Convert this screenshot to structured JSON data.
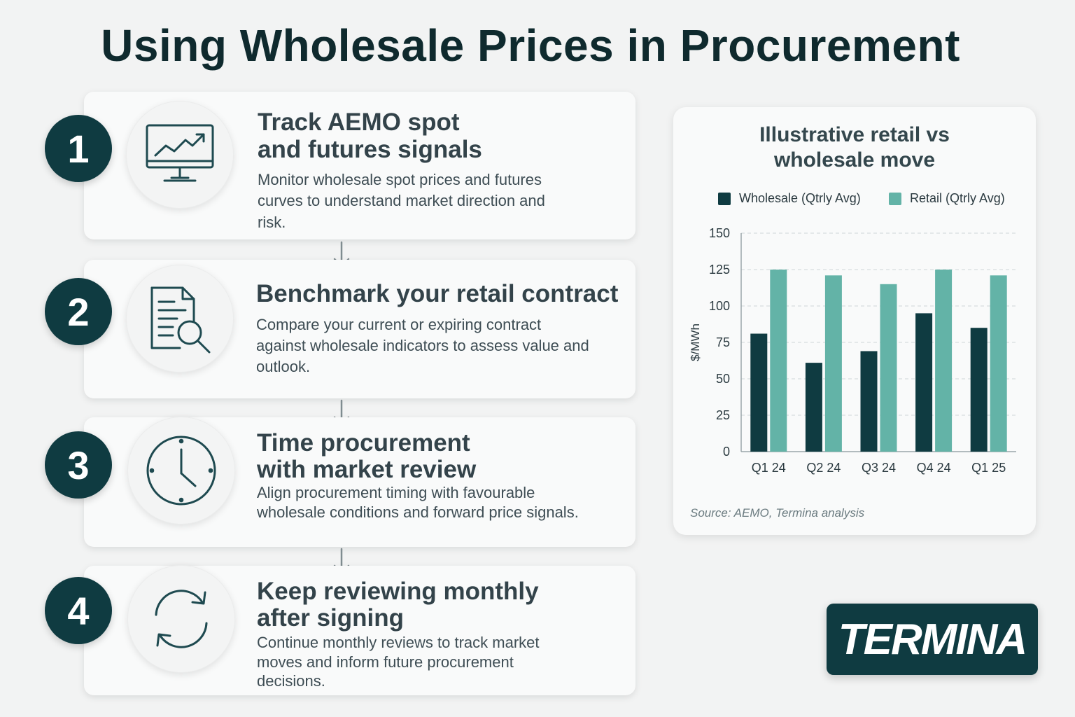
{
  "title": "Using Wholesale Prices in Procurement",
  "steps": [
    {
      "number": "1",
      "icon": "monitor-chart-icon",
      "title_line1": "Track AEMO spot",
      "title_line2": "and futures signals",
      "description": "Monitor wholesale spot prices and futures curves to understand market direction and risk."
    },
    {
      "number": "2",
      "icon": "document-search-icon",
      "title_line1": "Benchmark your retail contract",
      "title_line2": "",
      "description": "Compare your current or expiring contract against wholesale indicators to assess value and outlook."
    },
    {
      "number": "3",
      "icon": "clock-icon",
      "title_line1": "Time procurement",
      "title_line2": "with market review",
      "description": "Align procurement timing with favourable wholesale conditions and forward price signals."
    },
    {
      "number": "4",
      "icon": "refresh-cycle-icon",
      "title_line1": "Keep reviewing monthly",
      "title_line2": "after signing",
      "description": "Continue monthly reviews to track market moves and inform future procurement decisions."
    }
  ],
  "chart": {
    "title_line1": "Illustrative retail vs",
    "title_line2": "wholesale move",
    "source": "Source: AEMO, Termina analysis"
  },
  "chart_data": {
    "type": "bar",
    "categories": [
      "Q1 24",
      "Q2 24",
      "Q3 24",
      "Q4 24",
      "Q1 25"
    ],
    "series": [
      {
        "name": "Wholesale (Qtrly Avg)",
        "color": "#0f3b41",
        "values": [
          81,
          61,
          69,
          95,
          85
        ]
      },
      {
        "name": "Retail (Qtrly Avg)",
        "color": "#63b3a7",
        "values": [
          125,
          121,
          115,
          125,
          121
        ]
      }
    ],
    "ylabel": "$/MWh",
    "xlabel": "",
    "ylim": [
      0,
      150
    ],
    "yticks": [
      0,
      25,
      50,
      75,
      100,
      125,
      150
    ],
    "grid": true,
    "legend_position": "top"
  },
  "logo": {
    "text": "TERMINA"
  },
  "colors": {
    "accent_dark": "#0f3b41",
    "accent_teal": "#63b3a7",
    "background": "#f2f3f3"
  }
}
